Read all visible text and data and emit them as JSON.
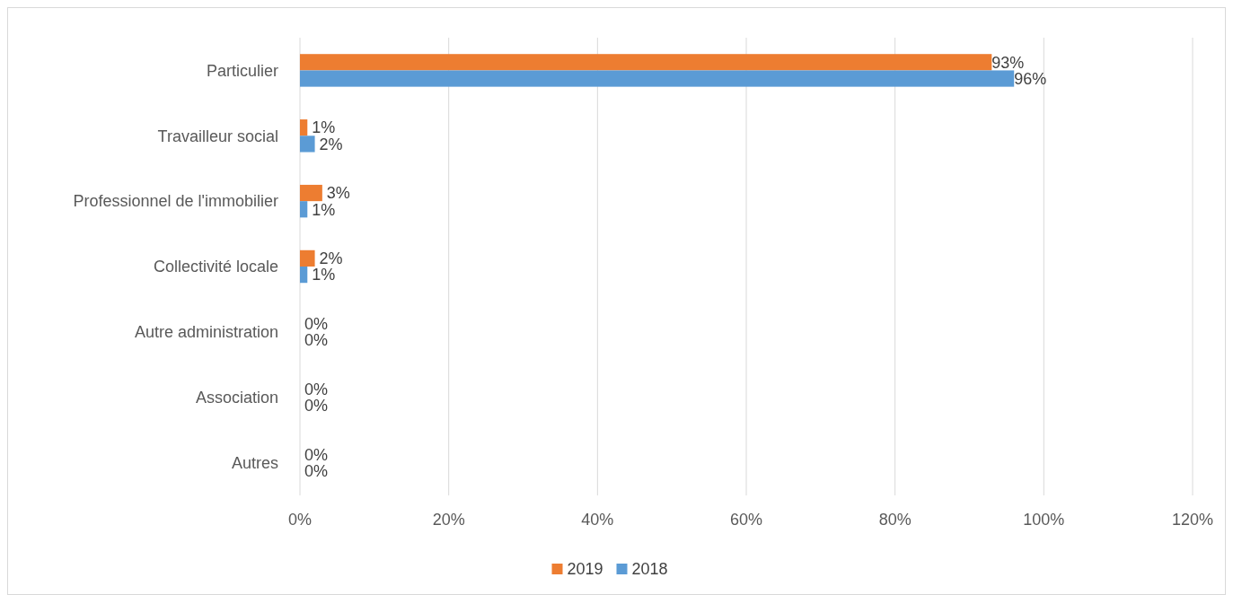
{
  "chart_data": {
    "type": "bar",
    "orientation": "horizontal",
    "categories": [
      "Particulier",
      "Travailleur social",
      "Professionnel de l'immobilier",
      "Collectivité locale",
      "Autre administration",
      "Association",
      "Autres"
    ],
    "series": [
      {
        "name": "2019",
        "color": "#ed7d31",
        "values": [
          93,
          1,
          3,
          2,
          0,
          0,
          0
        ],
        "value_labels": [
          "93%",
          "1%",
          "3%",
          "2%",
          "0%",
          "0%",
          "0%"
        ]
      },
      {
        "name": "2018",
        "color": "#5b9bd5",
        "values": [
          96,
          2,
          1,
          1,
          0,
          0,
          0
        ],
        "value_labels": [
          "96%",
          "2%",
          "1%",
          "1%",
          "0%",
          "0%",
          "0%"
        ]
      }
    ],
    "xlim": [
      0,
      120
    ],
    "xticks": [
      {
        "value": 0,
        "label": "0%"
      },
      {
        "value": 20,
        "label": "20%"
      },
      {
        "value": 40,
        "label": "40%"
      },
      {
        "value": 60,
        "label": "60%"
      },
      {
        "value": 80,
        "label": "80%"
      },
      {
        "value": 100,
        "label": "100%"
      },
      {
        "value": 120,
        "label": "120%"
      }
    ],
    "grid": "x",
    "legend": "bottom"
  }
}
